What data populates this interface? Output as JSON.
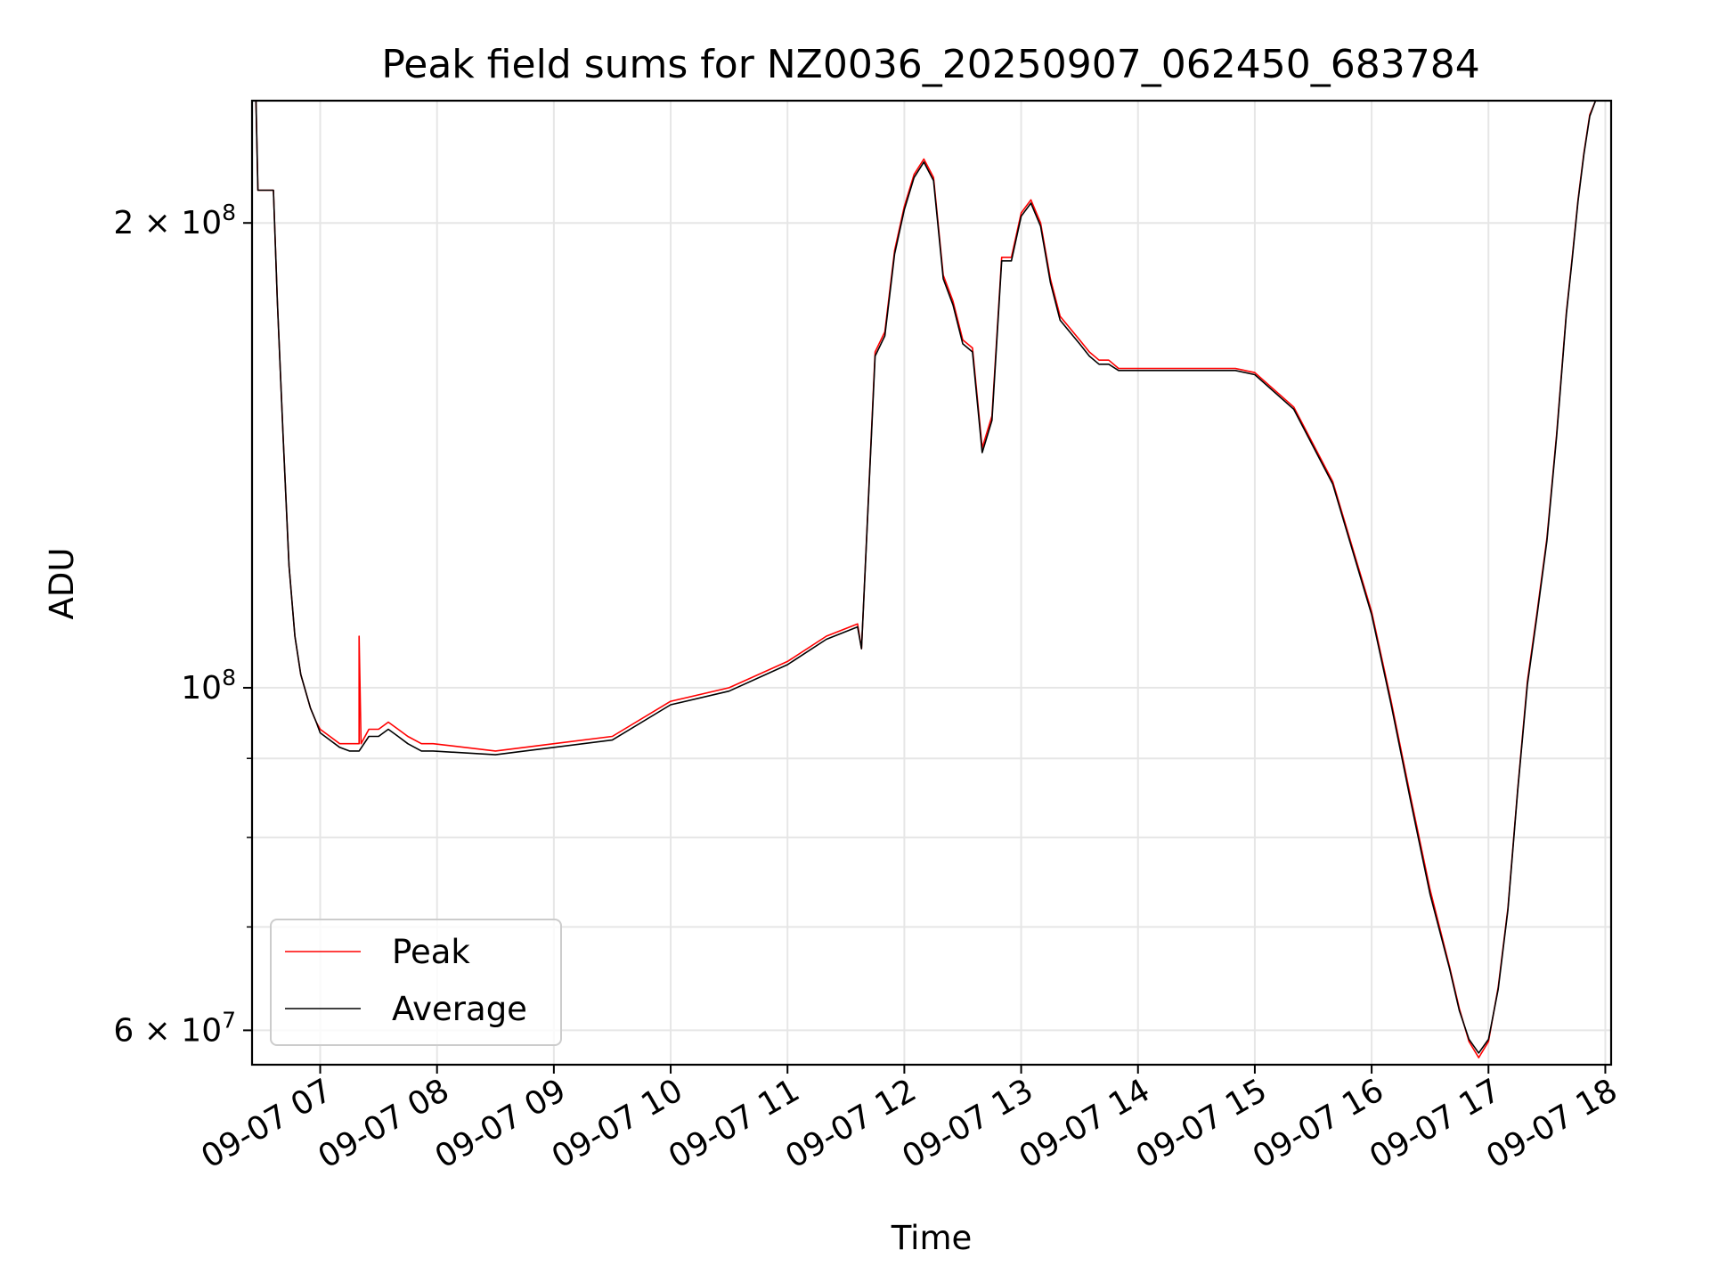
{
  "chart_data": {
    "type": "line",
    "title": "Peak field sums for NZ0036_20250907_062450_683784",
    "xlabel": "Time",
    "ylabel": "ADU",
    "x_range": [
      "2025-09-07 06:25",
      "2025-09-07 18:03"
    ],
    "y_range": [
      57000000,
      240000000
    ],
    "y_scale": "log",
    "grid": true,
    "legend_position": "lower-left",
    "x_ticks": [
      {
        "x": "2025-09-07 07:00",
        "label": "09-07 07"
      },
      {
        "x": "2025-09-07 08:00",
        "label": "09-07 08"
      },
      {
        "x": "2025-09-07 09:00",
        "label": "09-07 09"
      },
      {
        "x": "2025-09-07 10:00",
        "label": "09-07 10"
      },
      {
        "x": "2025-09-07 11:00",
        "label": "09-07 11"
      },
      {
        "x": "2025-09-07 12:00",
        "label": "09-07 12"
      },
      {
        "x": "2025-09-07 13:00",
        "label": "09-07 13"
      },
      {
        "x": "2025-09-07 14:00",
        "label": "09-07 14"
      },
      {
        "x": "2025-09-07 15:00",
        "label": "09-07 15"
      },
      {
        "x": "2025-09-07 16:00",
        "label": "09-07 16"
      },
      {
        "x": "2025-09-07 17:00",
        "label": "09-07 17"
      },
      {
        "x": "2025-09-07 18:00",
        "label": "09-07 18"
      }
    ],
    "y_ticks_major": [
      {
        "value": 60000000,
        "mant": "6 × 10",
        "exp": "7"
      },
      {
        "value": 100000000,
        "mant": "10",
        "exp": "8"
      },
      {
        "value": 200000000,
        "mant": "2 × 10",
        "exp": "8"
      }
    ],
    "y_ticks_minor": [
      70000000,
      80000000,
      90000000
    ],
    "series": [
      {
        "name": "Peak",
        "color": "#ff0000",
        "x": [
          "2025-09-07 06:25",
          "2025-09-07 06:27",
          "2025-09-07 06:28",
          "2025-09-07 06:30",
          "2025-09-07 06:36",
          "2025-09-07 06:38",
          "2025-09-07 06:41",
          "2025-09-07 06:44",
          "2025-09-07 06:47",
          "2025-09-07 06:50",
          "2025-09-07 06:55",
          "2025-09-07 06:58",
          "2025-09-07 07:00",
          "2025-09-07 07:05",
          "2025-09-07 07:10",
          "2025-09-07 07:15",
          "2025-09-07 07:20",
          "2025-09-07 07:20",
          "2025-09-07 07:21",
          "2025-09-07 07:25",
          "2025-09-07 07:30",
          "2025-09-07 07:35",
          "2025-09-07 07:40",
          "2025-09-07 07:45",
          "2025-09-07 07:52",
          "2025-09-07 07:58",
          "2025-09-07 08:30",
          "2025-09-07 09:00",
          "2025-09-07 09:30",
          "2025-09-07 10:00",
          "2025-09-07 10:30",
          "2025-09-07 11:00",
          "2025-09-07 11:20",
          "2025-09-07 11:36",
          "2025-09-07 11:38",
          "2025-09-07 11:45",
          "2025-09-07 11:50",
          "2025-09-07 11:55",
          "2025-09-07 12:00",
          "2025-09-07 12:05",
          "2025-09-07 12:10",
          "2025-09-07 12:15",
          "2025-09-07 12:20",
          "2025-09-07 12:25",
          "2025-09-07 12:30",
          "2025-09-07 12:35",
          "2025-09-07 12:40",
          "2025-09-07 12:45",
          "2025-09-07 12:50",
          "2025-09-07 12:55",
          "2025-09-07 13:00",
          "2025-09-07 13:05",
          "2025-09-07 13:10",
          "2025-09-07 13:15",
          "2025-09-07 13:20",
          "2025-09-07 13:30",
          "2025-09-07 13:35",
          "2025-09-07 13:40",
          "2025-09-07 13:45",
          "2025-09-07 13:50",
          "2025-09-07 13:55",
          "2025-09-07 14:00",
          "2025-09-07 14:05",
          "2025-09-07 14:10",
          "2025-09-07 14:15",
          "2025-09-07 14:20",
          "2025-09-07 14:25",
          "2025-09-07 14:30",
          "2025-09-07 14:35",
          "2025-09-07 14:40",
          "2025-09-07 14:45",
          "2025-09-07 14:50",
          "2025-09-07 15:00",
          "2025-09-07 15:20",
          "2025-09-07 15:40",
          "2025-09-07 16:00",
          "2025-09-07 16:10",
          "2025-09-07 16:20",
          "2025-09-07 16:30",
          "2025-09-07 16:40",
          "2025-09-07 16:45",
          "2025-09-07 16:50",
          "2025-09-07 16:55",
          "2025-09-07 17:00",
          "2025-09-07 17:05",
          "2025-09-07 17:10",
          "2025-09-07 17:15",
          "2025-09-07 17:20",
          "2025-09-07 17:25",
          "2025-09-07 17:30",
          "2025-09-07 17:35",
          "2025-09-07 17:40",
          "2025-09-07 17:43",
          "2025-09-07 17:46",
          "2025-09-07 17:49",
          "2025-09-07 17:52",
          "2025-09-07 17:55",
          "2025-09-07 17:58",
          "2025-09-07 18:01",
          "2025-09-07 18:03"
        ],
        "values": [
          240000000,
          240000000,
          210000000,
          210000000,
          210000000,
          178000000,
          145000000,
          120000000,
          108000000,
          102000000,
          97000000,
          95000000,
          94000000,
          93000000,
          92000000,
          92000000,
          92000000,
          108000000,
          92000000,
          94000000,
          94000000,
          95000000,
          94000000,
          93000000,
          92000000,
          92000000,
          91000000,
          92000000,
          93000000,
          98000000,
          100000000,
          104000000,
          108000000,
          110000000,
          106000000,
          165000000,
          170000000,
          192000000,
          205000000,
          215000000,
          220000000,
          214000000,
          185000000,
          178000000,
          168000000,
          166000000,
          143000000,
          150000000,
          190000000,
          190000000,
          203000000,
          207000000,
          200000000,
          184000000,
          174000000,
          168000000,
          165000000,
          163000000,
          163000000,
          161000000,
          161000000,
          161000000,
          161000000,
          161000000,
          161000000,
          161000000,
          161000000,
          161000000,
          161000000,
          161000000,
          161000000,
          161000000,
          160000000,
          152000000,
          136000000,
          112000000,
          98000000,
          85000000,
          74000000,
          66000000,
          62000000,
          59000000,
          57600000,
          59000000,
          64000000,
          72000000,
          86000000,
          101000000,
          112000000,
          125000000,
          146000000,
          175000000,
          190000000,
          207000000,
          222000000,
          235000000,
          240000000,
          240000000,
          240000000,
          240000000
        ]
      },
      {
        "name": "Average",
        "color": "#000000",
        "x": [
          "2025-09-07 06:25",
          "2025-09-07 06:27",
          "2025-09-07 06:28",
          "2025-09-07 06:30",
          "2025-09-07 06:36",
          "2025-09-07 06:38",
          "2025-09-07 06:41",
          "2025-09-07 06:44",
          "2025-09-07 06:47",
          "2025-09-07 06:50",
          "2025-09-07 06:55",
          "2025-09-07 06:58",
          "2025-09-07 07:00",
          "2025-09-07 07:05",
          "2025-09-07 07:10",
          "2025-09-07 07:15",
          "2025-09-07 07:20",
          "2025-09-07 07:25",
          "2025-09-07 07:30",
          "2025-09-07 07:35",
          "2025-09-07 07:40",
          "2025-09-07 07:45",
          "2025-09-07 07:52",
          "2025-09-07 07:58",
          "2025-09-07 08:30",
          "2025-09-07 09:00",
          "2025-09-07 09:30",
          "2025-09-07 10:00",
          "2025-09-07 10:30",
          "2025-09-07 11:00",
          "2025-09-07 11:20",
          "2025-09-07 11:36",
          "2025-09-07 11:38",
          "2025-09-07 11:45",
          "2025-09-07 11:50",
          "2025-09-07 11:55",
          "2025-09-07 12:00",
          "2025-09-07 12:05",
          "2025-09-07 12:10",
          "2025-09-07 12:15",
          "2025-09-07 12:20",
          "2025-09-07 12:25",
          "2025-09-07 12:30",
          "2025-09-07 12:35",
          "2025-09-07 12:40",
          "2025-09-07 12:45",
          "2025-09-07 12:50",
          "2025-09-07 12:55",
          "2025-09-07 13:00",
          "2025-09-07 13:05",
          "2025-09-07 13:10",
          "2025-09-07 13:15",
          "2025-09-07 13:20",
          "2025-09-07 13:30",
          "2025-09-07 13:35",
          "2025-09-07 13:40",
          "2025-09-07 13:45",
          "2025-09-07 13:50",
          "2025-09-07 13:55",
          "2025-09-07 14:00",
          "2025-09-07 14:05",
          "2025-09-07 14:10",
          "2025-09-07 14:15",
          "2025-09-07 14:20",
          "2025-09-07 14:25",
          "2025-09-07 14:30",
          "2025-09-07 14:35",
          "2025-09-07 14:40",
          "2025-09-07 14:45",
          "2025-09-07 14:50",
          "2025-09-07 15:00",
          "2025-09-07 15:20",
          "2025-09-07 15:40",
          "2025-09-07 16:00",
          "2025-09-07 16:10",
          "2025-09-07 16:20",
          "2025-09-07 16:30",
          "2025-09-07 16:40",
          "2025-09-07 16:45",
          "2025-09-07 16:50",
          "2025-09-07 16:55",
          "2025-09-07 17:00",
          "2025-09-07 17:05",
          "2025-09-07 17:10",
          "2025-09-07 17:15",
          "2025-09-07 17:20",
          "2025-09-07 17:25",
          "2025-09-07 17:30",
          "2025-09-07 17:35",
          "2025-09-07 17:40",
          "2025-09-07 17:43",
          "2025-09-07 17:46",
          "2025-09-07 17:49",
          "2025-09-07 17:52",
          "2025-09-07 17:55",
          "2025-09-07 17:58",
          "2025-09-07 18:01",
          "2025-09-07 18:03"
        ],
        "values": [
          240000000,
          240000000,
          210000000,
          210000000,
          210000000,
          178000000,
          145000000,
          120000000,
          108000000,
          102000000,
          97000000,
          95000000,
          93500000,
          92500000,
          91500000,
          91000000,
          91000000,
          93000000,
          93000000,
          94000000,
          93000000,
          92000000,
          91000000,
          91000000,
          90500000,
          91500000,
          92500000,
          97500000,
          99500000,
          103500000,
          107500000,
          109500000,
          106000000,
          164000000,
          169000000,
          191000000,
          204000000,
          214000000,
          219000000,
          213000000,
          184000000,
          177000000,
          167000000,
          165000000,
          142000000,
          149000000,
          189000000,
          189000000,
          202000000,
          206000000,
          199000000,
          183000000,
          173000000,
          167000000,
          164000000,
          162000000,
          162000000,
          160500000,
          160500000,
          160500000,
          160500000,
          160500000,
          160500000,
          160500000,
          160500000,
          160500000,
          160500000,
          160500000,
          160500000,
          160500000,
          159500000,
          151500000,
          135500000,
          111500000,
          97500000,
          84500000,
          73500000,
          65800000,
          61800000,
          59200000,
          58000000,
          59200000,
          63800000,
          71800000,
          85800000,
          100500000,
          111500000,
          124500000,
          145500000,
          174500000,
          189500000,
          206500000,
          221500000,
          234500000,
          240000000,
          240000000,
          240000000,
          240000000
        ]
      }
    ]
  }
}
